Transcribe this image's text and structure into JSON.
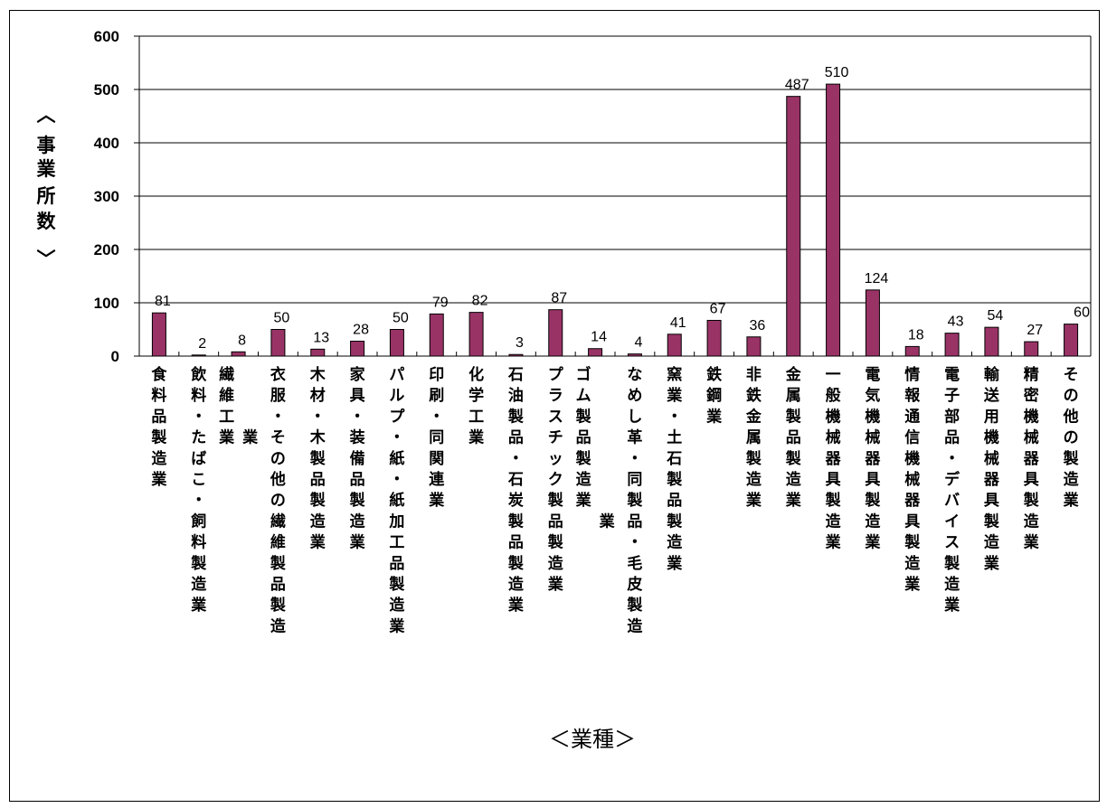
{
  "chart_data": {
    "type": "bar",
    "categories": [
      "食料品製造業",
      "飲料・たばこ・飼料製造業",
      "繊維工業",
      "衣服・その他の繊維製品製造業",
      "木材・木製品製造業",
      "家具・装備品製造業",
      "パルプ・紙・紙加工品製造業",
      "印刷・同関連業",
      "化学工業",
      "石油製品・石炭製品製造業",
      "プラスチック製品製造業",
      "ゴム製品製造業",
      "なめし革・同製品・毛皮製造",
      "窯業・土石製品製造業",
      "鉄鋼業",
      "非鉄金属製造業",
      "金属製品製造業",
      "一般機械器具製造業",
      "電気機械器具製造業",
      "情報通信機械器具製造業",
      "電子部品・デバイス製造業",
      "輸送用機械器具製造業",
      "精密機械器具製造業",
      "その他の製造業"
    ],
    "category_columns": [
      [
        "食料品製造業"
      ],
      [
        "飲料・たばこ・飼料製造業"
      ],
      [
        "繊維工業",
        "業"
      ],
      [
        "衣服・その他の繊維製品製造"
      ],
      [
        "木材・木製品製造業"
      ],
      [
        "家具・装備品製造業"
      ],
      [
        "パルプ・紙・紙加工品製造業"
      ],
      [
        "印刷・同関連業"
      ],
      [
        "化学工業"
      ],
      [
        "石油製品・石炭製品製造業"
      ],
      [
        "プラスチック製品製造業"
      ],
      [
        "ゴム製品製造業",
        "業"
      ],
      [
        "なめし革・同製品・毛皮製造"
      ],
      [
        "窯業・土石製品製造業"
      ],
      [
        "鉄鋼業"
      ],
      [
        "非鉄金属製造業"
      ],
      [
        "金属製品製造業"
      ],
      [
        "一般機械器具製造業"
      ],
      [
        "電気機械器具製造業"
      ],
      [
        "情報通信機械器具製造業"
      ],
      [
        "電子部品・デバイス製造業"
      ],
      [
        "輸送用機械器具製造業"
      ],
      [
        "精密機械器具製造業"
      ],
      [
        "その他の製造業"
      ]
    ],
    "values": [
      81,
      2,
      8,
      50,
      13,
      28,
      50,
      79,
      82,
      3,
      87,
      14,
      4,
      41,
      67,
      36,
      487,
      510,
      124,
      18,
      43,
      54,
      27,
      60
    ],
    "ylabel": "〈事業所数〉",
    "xlabel": "＜業種＞",
    "ylim": [
      0,
      600
    ],
    "yticks": [
      0,
      100,
      200,
      300,
      400,
      500,
      600
    ],
    "grid": true,
    "legend": "none",
    "bar_color": "#993366"
  }
}
